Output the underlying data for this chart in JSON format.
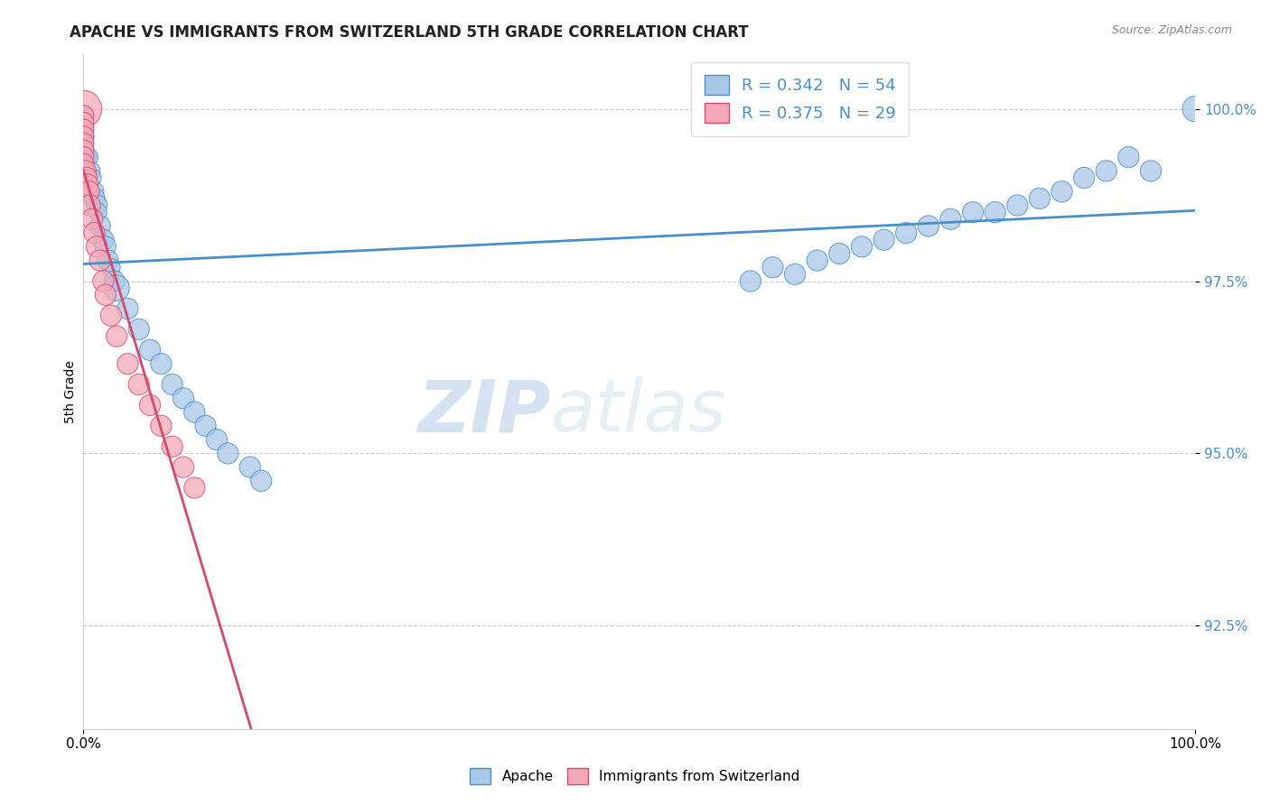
{
  "title": "APACHE VS IMMIGRANTS FROM SWITZERLAND 5TH GRADE CORRELATION CHART",
  "source": "Source: ZipAtlas.com",
  "ylabel": "5th Grade",
  "xlim": [
    0.0,
    1.0
  ],
  "ylim": [
    0.91,
    1.008
  ],
  "yticks": [
    0.925,
    0.95,
    0.975,
    1.0
  ],
  "ytick_labels": [
    "92.5%",
    "95.0%",
    "97.5%",
    "100.0%"
  ],
  "xtick_labels": [
    "0.0%",
    "100.0%"
  ],
  "legend_r_blue": "R = 0.342",
  "legend_n_blue": "N = 54",
  "legend_r_pink": "R = 0.375",
  "legend_n_pink": "N = 29",
  "blue_color": "#A8C8E8",
  "pink_color": "#F4A8B8",
  "trendline_blue": "#4A90C8",
  "trendline_pink": "#D84870",
  "blue_x": [
    0.0,
    0.0,
    0.0,
    0.0,
    0.0,
    0.0,
    0.0,
    0.0,
    0.005,
    0.007,
    0.008,
    0.009,
    0.01,
    0.012,
    0.013,
    0.015,
    0.018,
    0.02,
    0.022,
    0.025,
    0.028,
    0.03,
    0.04,
    0.05,
    0.06,
    0.07,
    0.08,
    0.09,
    0.1,
    0.11,
    0.12,
    0.13,
    0.15,
    0.16,
    0.6,
    0.62,
    0.64,
    0.66,
    0.68,
    0.7,
    0.72,
    0.74,
    0.76,
    0.78,
    0.8,
    0.82,
    0.84,
    0.86,
    0.88,
    0.9,
    0.92,
    0.94,
    0.96,
    1.0
  ],
  "blue_y": [
    0.999,
    0.998,
    0.997,
    0.996,
    0.996,
    0.995,
    0.994,
    0.993,
    0.993,
    0.991,
    0.99,
    0.988,
    0.987,
    0.986,
    0.985,
    0.983,
    0.981,
    0.98,
    0.978,
    0.977,
    0.975,
    0.974,
    0.971,
    0.968,
    0.965,
    0.963,
    0.96,
    0.958,
    0.956,
    0.954,
    0.952,
    0.95,
    0.948,
    0.946,
    0.975,
    0.977,
    0.976,
    0.978,
    0.979,
    0.98,
    0.981,
    0.982,
    0.983,
    0.984,
    0.985,
    0.985,
    0.986,
    0.987,
    0.988,
    0.99,
    0.991,
    0.993,
    0.991,
    1.0
  ],
  "blue_sizes": [
    80,
    80,
    80,
    80,
    80,
    80,
    80,
    120,
    60,
    60,
    60,
    80,
    80,
    80,
    60,
    80,
    80,
    80,
    80,
    60,
    80,
    120,
    80,
    80,
    80,
    80,
    80,
    80,
    80,
    80,
    80,
    80,
    80,
    80,
    80,
    80,
    80,
    80,
    80,
    80,
    80,
    80,
    80,
    80,
    80,
    80,
    80,
    80,
    80,
    80,
    80,
    80,
    80,
    120
  ],
  "pink_x": [
    0.0,
    0.0,
    0.0,
    0.0,
    0.0,
    0.0,
    0.0,
    0.0,
    0.0,
    0.002,
    0.003,
    0.004,
    0.005,
    0.006,
    0.008,
    0.01,
    0.012,
    0.015,
    0.018,
    0.02,
    0.025,
    0.03,
    0.04,
    0.05,
    0.06,
    0.07,
    0.08,
    0.09,
    0.1
  ],
  "pink_y": [
    1.0,
    0.999,
    0.998,
    0.997,
    0.996,
    0.995,
    0.994,
    0.993,
    0.992,
    0.991,
    0.99,
    0.989,
    0.988,
    0.986,
    0.984,
    0.982,
    0.98,
    0.978,
    0.975,
    0.973,
    0.97,
    0.967,
    0.963,
    0.96,
    0.957,
    0.954,
    0.951,
    0.948,
    0.945
  ],
  "pink_sizes": [
    250,
    80,
    80,
    80,
    80,
    80,
    80,
    80,
    80,
    80,
    80,
    80,
    80,
    80,
    80,
    80,
    80,
    80,
    80,
    80,
    80,
    80,
    80,
    80,
    80,
    80,
    80,
    80,
    80
  ]
}
